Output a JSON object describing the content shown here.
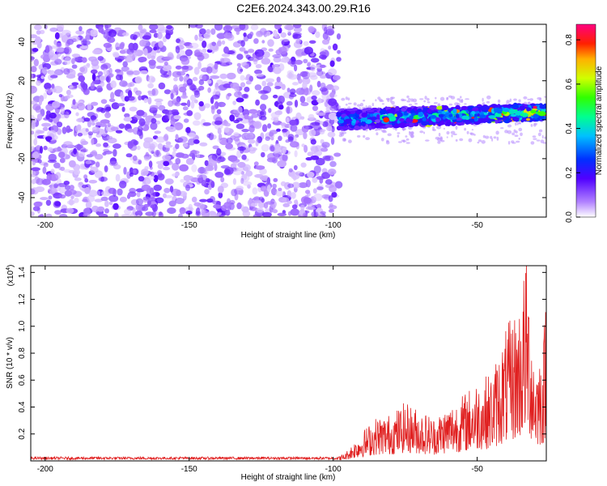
{
  "title": "C2E6.2024.343.00.29.R16",
  "colors": {
    "snr_line": "#e02020",
    "background": "#ffffff"
  },
  "chart_data": [
    {
      "type": "heatmap",
      "xlabel": "Height of straight line (km)",
      "ylabel": "Frequency (Hz)",
      "xlim": [
        -205,
        -26
      ],
      "ylim": [
        -50,
        49
      ],
      "x_ticks": [
        "-200",
        "-150",
        "-100",
        "-50"
      ],
      "y_ticks": [
        "40",
        "20",
        "0",
        "-20",
        "-40"
      ],
      "colorbar": {
        "label": "Normalized spectral amplitude",
        "range": [
          0,
          0.87
        ],
        "ticks": [
          "0.0",
          "0.2",
          "0.4",
          "0.6",
          "0.8"
        ],
        "colormap": "rainbow (violet to red)"
      },
      "features": {
        "noise_region_x": [
          -205,
          -98
        ],
        "signal_start_x": -98,
        "signal_band_center_hz": [
          0,
          4
        ],
        "signal_band_halfwidth_hz": 5,
        "peak_amplitude": 0.85
      },
      "grid": false
    },
    {
      "type": "line",
      "xlabel": "Height of straight line (km)",
      "ylabel": "SNR (10 * v/v)",
      "y_multiplier": "(x10",
      "y_multiplier_exp": "4",
      "y_multiplier_close": ")",
      "xlim": [
        -205,
        -26
      ],
      "ylim": [
        0,
        1.45
      ],
      "x_ticks": [
        "-200",
        "-150",
        "-100",
        "-50"
      ],
      "y_ticks": [
        "1.4",
        "1.2",
        "1.0",
        "0.8",
        "0.6",
        "0.4",
        "0.2"
      ],
      "series": [
        {
          "color": "#e02020",
          "x": [
            -205,
            -150,
            -100,
            -96,
            -90,
            -85,
            -80,
            -75,
            -70,
            -65,
            -60,
            -55,
            -50,
            -45,
            -40,
            -35,
            -33,
            -30,
            -27,
            -26
          ],
          "y": [
            0.02,
            0.02,
            0.02,
            0.05,
            0.2,
            0.3,
            0.32,
            0.4,
            0.35,
            0.3,
            0.38,
            0.45,
            0.55,
            0.6,
            0.9,
            1.1,
            1.45,
            0.7,
            0.8,
            1.3
          ]
        }
      ],
      "grid": false
    }
  ]
}
